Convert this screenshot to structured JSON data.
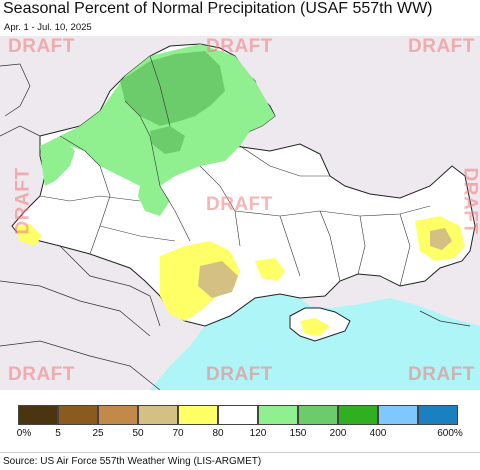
{
  "title": "Seasonal Percent of Normal Precipitation (USAF 557th WW)",
  "subtitle": "Apr. 1 - Jul. 10, 2025",
  "watermark": "DRAFT",
  "legend": {
    "colors": [
      "#4a3510",
      "#8b5a1e",
      "#c28a48",
      "#d5c084",
      "#ffff66",
      "#ffffff",
      "#90f090",
      "#6ccc6c",
      "#30b020",
      "#7fc8ff",
      "#1a80c0"
    ],
    "labels": [
      "0%",
      "5",
      "25",
      "50",
      "70",
      "80",
      "120",
      "150",
      "200",
      "400",
      "600%"
    ]
  },
  "source": "Source: US Air Force 557th Weather Wing (LIS-ARGMET)",
  "colors": {
    "sea": "#aef5f8",
    "outside": "#ede9ee",
    "land": "#ffffff",
    "border": "#222222"
  }
}
